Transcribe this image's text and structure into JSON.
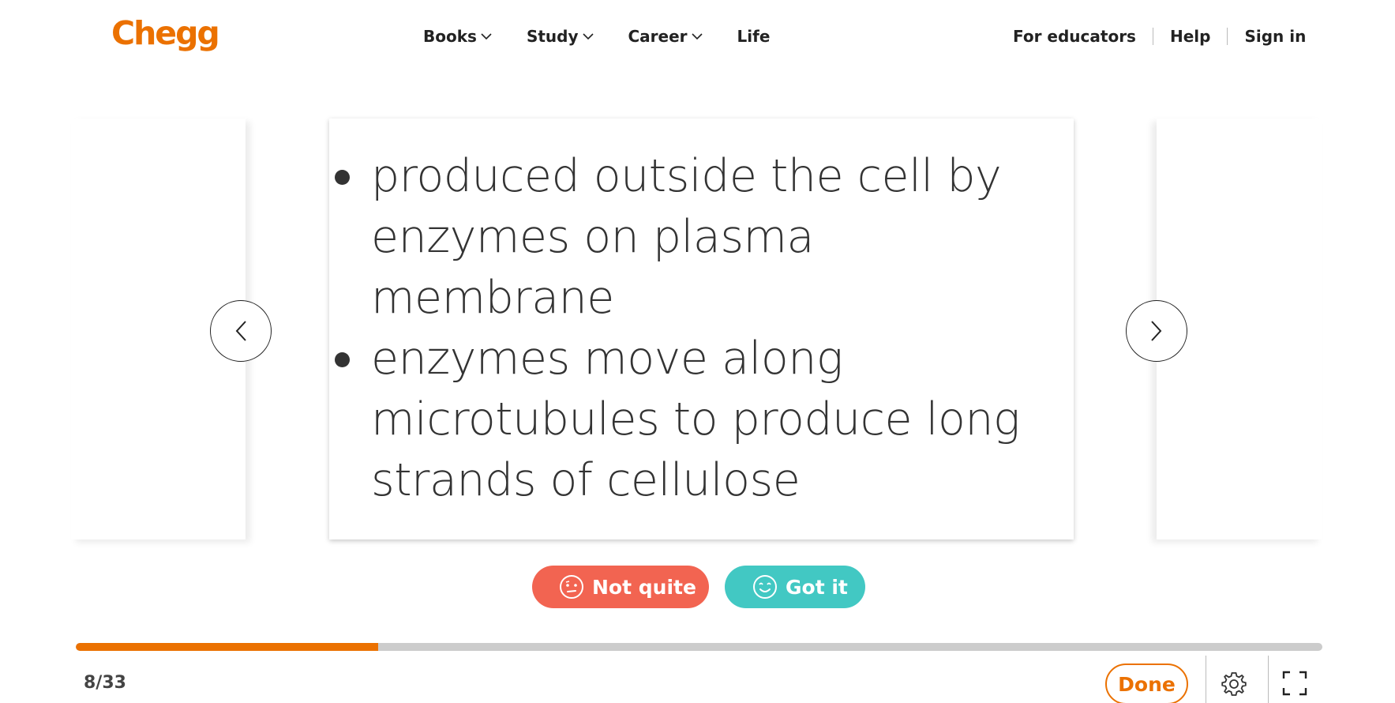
{
  "header": {
    "logo": "Chegg",
    "nav": [
      {
        "label": "Books",
        "has_dropdown": true
      },
      {
        "label": "Study",
        "has_dropdown": true
      },
      {
        "label": "Career",
        "has_dropdown": true
      },
      {
        "label": "Life",
        "has_dropdown": false
      }
    ],
    "right_links": [
      "For educators",
      "Help",
      "Sign in"
    ]
  },
  "card": {
    "bullets": [
      "produced outside the cell by enzymes on plasma membrane",
      "enzymes move along microtubules to produce long strands of cellulose"
    ]
  },
  "rating": {
    "not_quite": "Not quite",
    "got_it": "Got it"
  },
  "progress": {
    "current": 8,
    "total": 33,
    "label": "8/33"
  },
  "footer": {
    "done": "Done"
  },
  "icons": {
    "prev": "chevron-left-icon",
    "next": "chevron-right-icon",
    "settings": "gear-icon",
    "fullscreen": "expand-icon"
  },
  "colors": {
    "brand": "#eb7100",
    "not_quite": "#f26451",
    "got_it": "#42c8c3",
    "track": "#cccccc"
  }
}
